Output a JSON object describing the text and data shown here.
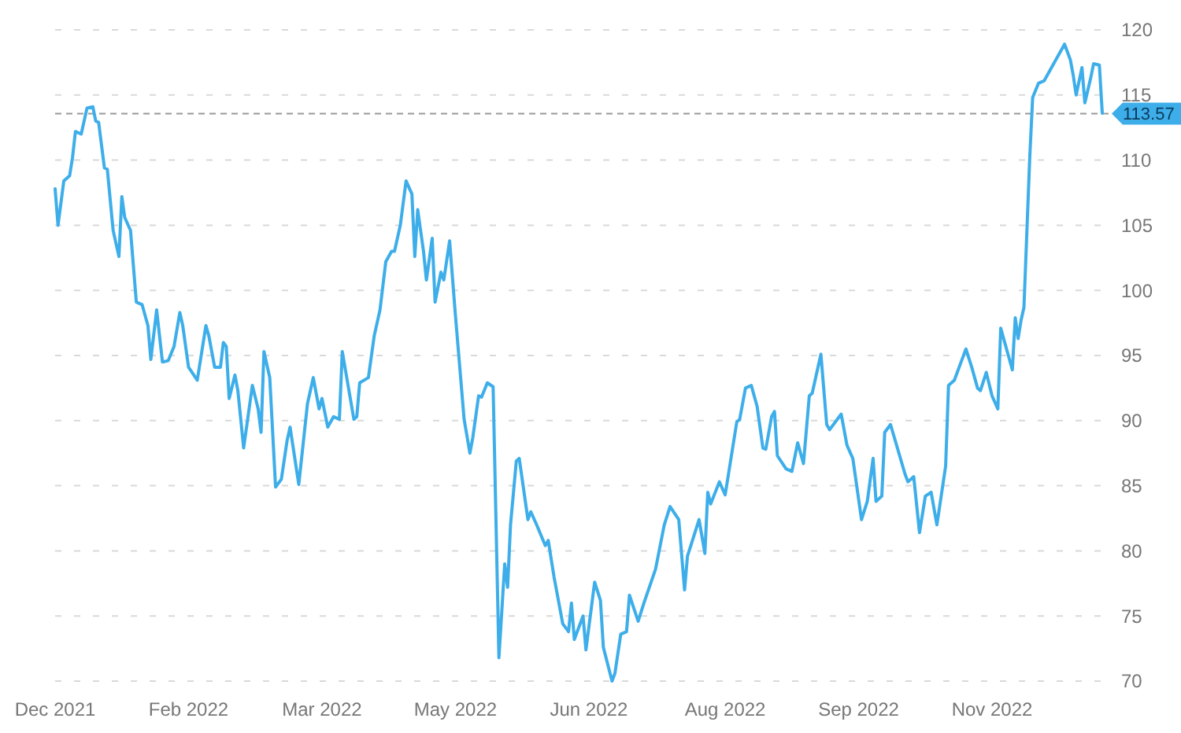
{
  "chart_data": {
    "type": "line",
    "x": [
      "2021-12-20",
      "2021-12-21",
      "2021-12-23",
      "2021-12-25",
      "2021-12-26",
      "2021-12-27",
      "2021-12-29",
      "2021-12-30",
      "2021-12-31",
      "2022-01-02",
      "2022-01-03",
      "2022-01-04",
      "2022-01-06",
      "2022-01-07",
      "2022-01-09",
      "2022-01-11",
      "2022-01-12",
      "2022-01-13",
      "2022-01-15",
      "2022-01-17",
      "2022-01-19",
      "2022-01-21",
      "2022-01-22",
      "2022-01-24",
      "2022-01-26",
      "2022-01-28",
      "2022-01-30",
      "2022-02-01",
      "2022-02-02",
      "2022-02-04",
      "2022-02-07",
      "2022-02-10",
      "2022-02-11",
      "2022-02-13",
      "2022-02-15",
      "2022-02-16",
      "2022-02-17",
      "2022-02-18",
      "2022-02-20",
      "2022-02-21",
      "2022-02-23",
      "2022-02-26",
      "2022-02-28",
      "2022-03-01",
      "2022-03-02",
      "2022-03-04",
      "2022-03-06",
      "2022-03-08",
      "2022-03-10",
      "2022-03-11",
      "2022-03-14",
      "2022-03-17",
      "2022-03-19",
      "2022-03-21",
      "2022-03-22",
      "2022-03-24",
      "2022-03-26",
      "2022-03-28",
      "2022-03-29",
      "2022-04-02",
      "2022-04-03",
      "2022-04-04",
      "2022-04-07",
      "2022-04-09",
      "2022-04-11",
      "2022-04-13",
      "2022-04-15",
      "2022-04-16",
      "2022-04-18",
      "2022-04-20",
      "2022-04-22",
      "2022-04-23",
      "2022-04-24",
      "2022-04-26",
      "2022-04-27",
      "2022-04-29",
      "2022-04-30",
      "2022-05-02",
      "2022-05-03",
      "2022-05-05",
      "2022-05-07",
      "2022-05-10",
      "2022-05-12",
      "2022-05-13",
      "2022-05-15",
      "2022-05-16",
      "2022-05-18",
      "2022-05-20",
      "2022-05-22",
      "2022-05-24",
      "2022-05-25",
      "2022-05-26",
      "2022-05-28",
      "2022-05-29",
      "2022-06-01",
      "2022-06-02",
      "2022-06-04",
      "2022-06-07",
      "2022-06-08",
      "2022-06-10",
      "2022-06-13",
      "2022-06-15",
      "2022-06-16",
      "2022-06-17",
      "2022-06-20",
      "2022-06-21",
      "2022-06-24",
      "2022-06-26",
      "2022-06-27",
      "2022-06-30",
      "2022-07-01",
      "2022-07-03",
      "2022-07-05",
      "2022-07-06",
      "2022-07-09",
      "2022-07-11",
      "2022-07-15",
      "2022-07-18",
      "2022-07-20",
      "2022-07-23",
      "2022-07-25",
      "2022-07-26",
      "2022-07-28",
      "2022-07-30",
      "2022-08-01",
      "2022-08-02",
      "2022-08-03",
      "2022-08-06",
      "2022-08-08",
      "2022-08-12",
      "2022-08-13",
      "2022-08-15",
      "2022-08-17",
      "2022-08-19",
      "2022-08-21",
      "2022-08-22",
      "2022-08-24",
      "2022-08-25",
      "2022-08-26",
      "2022-08-29",
      "2022-08-31",
      "2022-09-02",
      "2022-09-04",
      "2022-09-06",
      "2022-09-07",
      "2022-09-10",
      "2022-09-12",
      "2022-09-13",
      "2022-09-17",
      "2022-09-19",
      "2022-09-21",
      "2022-09-24",
      "2022-09-26",
      "2022-09-28",
      "2022-09-29",
      "2022-10-01",
      "2022-10-02",
      "2022-10-04",
      "2022-10-09",
      "2022-10-10",
      "2022-10-12",
      "2022-10-14",
      "2022-10-16",
      "2022-10-18",
      "2022-10-20",
      "2022-10-23",
      "2022-10-24",
      "2022-10-26",
      "2022-10-29",
      "2022-10-30",
      "2022-11-01",
      "2022-11-03",
      "2022-11-04",
      "2022-11-06",
      "2022-11-08",
      "2022-11-10",
      "2022-11-11",
      "2022-11-14",
      "2022-11-15",
      "2022-11-16",
      "2022-11-17",
      "2022-11-18",
      "2022-11-19",
      "2022-11-21",
      "2022-11-22",
      "2022-11-24",
      "2022-11-26",
      "2022-11-28",
      "2022-11-30",
      "2022-12-03",
      "2022-12-05",
      "2022-12-06",
      "2022-12-07",
      "2022-12-09",
      "2022-12-10",
      "2022-12-12",
      "2022-12-13",
      "2022-12-15",
      "2022-12-16"
    ],
    "series": [
      {
        "color": "#3daee9",
        "values": [
          107.8,
          105.0,
          108.4,
          108.8,
          110.2,
          112.2,
          112.0,
          113.0,
          114.0,
          114.1,
          113.0,
          112.9,
          109.4,
          109.3,
          104.6,
          102.6,
          107.2,
          105.6,
          104.6,
          99.1,
          98.9,
          97.3,
          94.7,
          98.5,
          94.5,
          94.6,
          95.7,
          98.3,
          97.3,
          94.1,
          93.1,
          97.3,
          96.5,
          94.1,
          94.1,
          96.0,
          95.7,
          91.7,
          93.5,
          92.3,
          87.9,
          92.7,
          90.9,
          89.1,
          95.3,
          93.3,
          84.9,
          85.5,
          88.5,
          89.5,
          85.1,
          91.3,
          93.3,
          90.9,
          91.7,
          89.5,
          90.3,
          90.1,
          95.3,
          90.1,
          90.3,
          92.9,
          93.3,
          96.5,
          98.5,
          102.2,
          103.0,
          103.0,
          105.0,
          108.4,
          107.4,
          102.6,
          106.2,
          103.0,
          100.8,
          104.0,
          99.1,
          101.4,
          100.8,
          103.8,
          98.1,
          90.1,
          87.5,
          88.7,
          91.9,
          91.8,
          92.9,
          92.6,
          71.8,
          79.0,
          77.2,
          82.0,
          86.9,
          87.1,
          82.4,
          83.0,
          82.0,
          80.4,
          80.8,
          78.0,
          74.4,
          73.8,
          76.0,
          73.2,
          75.0,
          72.4,
          77.6,
          76.2,
          72.6,
          70.0,
          70.6,
          73.6,
          73.8,
          76.6,
          74.6,
          76.0,
          78.6,
          82.0,
          83.4,
          82.4,
          77.0,
          79.6,
          81.0,
          82.4,
          79.8,
          84.5,
          83.6,
          85.3,
          84.3,
          89.9,
          90.1,
          92.5,
          92.7,
          91.1,
          87.9,
          87.8,
          90.3,
          90.7,
          87.3,
          86.3,
          86.1,
          88.3,
          86.7,
          91.9,
          92.1,
          95.1,
          89.7,
          89.3,
          90.5,
          88.1,
          87.1,
          82.4,
          83.8,
          87.1,
          83.8,
          84.2,
          89.1,
          89.7,
          85.9,
          85.3,
          85.7,
          81.4,
          84.2,
          84.5,
          82.0,
          86.5,
          92.7,
          93.1,
          94.9,
          95.5,
          94.1,
          92.5,
          92.3,
          93.7,
          91.9,
          90.9,
          97.1,
          94.7,
          93.9,
          97.9,
          96.3,
          97.7,
          98.7,
          110.2,
          114.8,
          115.9,
          116.1,
          116.9,
          117.7,
          118.9,
          117.7,
          116.5,
          115.0,
          117.1,
          114.4,
          116.3,
          117.4,
          117.3,
          113.6
        ]
      }
    ],
    "xlim": [
      "2021-12-20",
      "2022-12-16"
    ],
    "xticks": [
      {
        "value": "2021-12-20",
        "label": "Dec 2021"
      },
      {
        "value": "2022-02-04",
        "label": "Feb 2022"
      },
      {
        "value": "2022-03-22",
        "label": "Mar 2022"
      },
      {
        "value": "2022-05-07",
        "label": "May 2022"
      },
      {
        "value": "2022-06-22",
        "label": "Jun 2022"
      },
      {
        "value": "2022-08-08",
        "label": "Aug 2022"
      },
      {
        "value": "2022-09-23",
        "label": "Sep 2022"
      },
      {
        "value": "2022-11-08",
        "label": "Nov 2022"
      }
    ],
    "ylim": [
      70,
      120
    ],
    "yticks": [
      70,
      75,
      80,
      85,
      90,
      95,
      100,
      105,
      110,
      115,
      120
    ],
    "grid": "y",
    "ref_lines": [
      {
        "axis": "y",
        "value": 113.57,
        "label": "113.57",
        "color": "#999999",
        "line_style": "dashed"
      }
    ]
  }
}
